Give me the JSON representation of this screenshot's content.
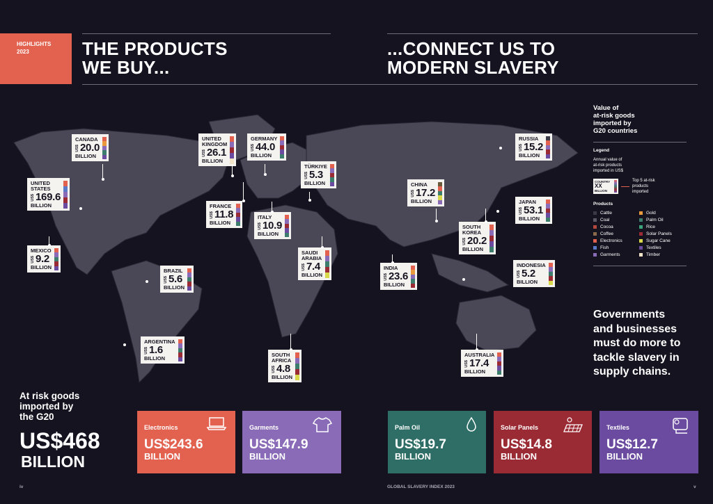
{
  "highlight": {
    "label": "HIGHLIGHTS",
    "year": "2023"
  },
  "titles": {
    "left": [
      "THE PRODUCTS",
      "WE BUY..."
    ],
    "right": [
      "...CONNECT US TO",
      "MODERN SLAVERY"
    ]
  },
  "currency_label": "US$",
  "unit_label": "BILLION",
  "countries": [
    {
      "id": "canada",
      "name": [
        "CANADA"
      ],
      "value": "20.0",
      "colors": [
        "#e2624f",
        "#e89a3c",
        "#8a6bb8",
        "#3d7d6e",
        "#6a4ba0"
      ]
    },
    {
      "id": "united-states",
      "name": [
        "UNITED",
        "STATES"
      ],
      "value": "169.6",
      "colors": [
        "#e2624f",
        "#5a7ac8",
        "#8a6bb8",
        "#9a2a34",
        "#6a4ba0"
      ]
    },
    {
      "id": "mexico",
      "name": [
        "MEXICO"
      ],
      "value": "9.2",
      "colors": [
        "#e2624f",
        "#8a6bb8",
        "#3d7d6e",
        "#9a2a34",
        "#6a4ba0"
      ]
    },
    {
      "id": "brazil",
      "name": [
        "BRAZIL"
      ],
      "value": "5.6",
      "colors": [
        "#e2624f",
        "#8a6bb8",
        "#3d7d6e",
        "#9a2a34",
        "#6a4ba0"
      ]
    },
    {
      "id": "argentina",
      "name": [
        "ARGENTINA"
      ],
      "value": "1.6",
      "colors": [
        "#e2624f",
        "#8a6bb8",
        "#3d7d6e",
        "#9a2a34",
        "#6a4ba0"
      ]
    },
    {
      "id": "united-kingdom",
      "name": [
        "UNITED",
        "KINGDOM"
      ],
      "value": "26.1",
      "colors": [
        "#e2624f",
        "#8a6bb8",
        "#9a2a34",
        "#6a4ba0",
        "#f0e3c8"
      ]
    },
    {
      "id": "germany",
      "name": [
        "GERMANY"
      ],
      "value": "44.0",
      "colors": [
        "#e2624f",
        "#8a6bb8",
        "#9a2a34",
        "#6a4ba0",
        "#3d7d6e"
      ]
    },
    {
      "id": "france",
      "name": [
        "FRANCE"
      ],
      "value": "11.8",
      "colors": [
        "#e2624f",
        "#8a6bb8",
        "#9a2a34",
        "#6a4ba0",
        "#3d7d6e"
      ]
    },
    {
      "id": "italy",
      "name": [
        "ITALY"
      ],
      "value": "10.9",
      "colors": [
        "#e2624f",
        "#8a6bb8",
        "#9a2a34",
        "#6a4ba0",
        "#3d7d6e"
      ]
    },
    {
      "id": "turkiye",
      "name": [
        "TÜRKIYE"
      ],
      "value": "5.3",
      "colors": [
        "#e2624f",
        "#8a6bb8",
        "#9a2a34",
        "#3d7d6e",
        "#6a4ba0"
      ]
    },
    {
      "id": "saudi-arabia",
      "name": [
        "SAUDI",
        "ARABIA"
      ],
      "value": "7.4",
      "colors": [
        "#e2624f",
        "#8a6bb8",
        "#3d7d6e",
        "#9a2a34",
        "#d7d84a"
      ]
    },
    {
      "id": "south-africa",
      "name": [
        "SOUTH",
        "AFRICA"
      ],
      "value": "4.8",
      "colors": [
        "#e2624f",
        "#8a6bb8",
        "#3d7d6e",
        "#9a2a34",
        "#d7d84a"
      ]
    },
    {
      "id": "russia",
      "name": [
        "RUSSIA"
      ],
      "value": "15.2",
      "colors": [
        "#3b3a46",
        "#e2624f",
        "#8a6bb8",
        "#9a2a34",
        "#6a4ba0"
      ]
    },
    {
      "id": "china",
      "name": [
        "CHINA"
      ],
      "value": "17.2",
      "colors": [
        "#6b5a3a",
        "#e2624f",
        "#3d7d6e",
        "#d7d84a",
        "#8a6bb8"
      ]
    },
    {
      "id": "japan",
      "name": [
        "JAPAN"
      ],
      "value": "53.1",
      "colors": [
        "#e2624f",
        "#8a6bb8",
        "#9a2a34",
        "#6a4ba0",
        "#3d7d6e"
      ]
    },
    {
      "id": "south-korea",
      "name": [
        "SOUTH",
        "KOREA"
      ],
      "value": "20.2",
      "colors": [
        "#e2624f",
        "#8a6bb8",
        "#9a2a34",
        "#6a4ba0",
        "#3d7d6e"
      ]
    },
    {
      "id": "india",
      "name": [
        "INDIA"
      ],
      "value": "23.6",
      "colors": [
        "#e2624f",
        "#e89a3c",
        "#8a6bb8",
        "#3d7d6e",
        "#9a2a34"
      ]
    },
    {
      "id": "indonesia",
      "name": [
        "INDONESIA"
      ],
      "value": "5.2",
      "colors": [
        "#e2624f",
        "#8a6bb8",
        "#3d7d6e",
        "#9a2a34",
        "#d7d84a"
      ]
    },
    {
      "id": "australia",
      "name": [
        "AUSTRALIA"
      ],
      "value": "17.4",
      "colors": [
        "#e2624f",
        "#8a6bb8",
        "#9a2a34",
        "#6a4ba0",
        "#3d7d6e"
      ]
    }
  ],
  "side": {
    "title": [
      "Value of",
      "at-risk goods",
      "imported by",
      "G20 countries"
    ],
    "legend_heading": "Legend",
    "legend_desc": [
      "Annual value of",
      "at-risk products",
      "imported in US$"
    ],
    "mini_card": {
      "country": "COUNTRY",
      "value": "XX",
      "cur": "US$",
      "unit": "BILLION"
    },
    "top5_desc": [
      "Top 5 at-risk",
      "products",
      "imported"
    ],
    "products_heading": "Products",
    "products": [
      {
        "name": "Cattle",
        "color": "#3b3a46"
      },
      {
        "name": "Gold",
        "color": "#e89a3c"
      },
      {
        "name": "Coal",
        "color": "#5c5a66"
      },
      {
        "name": "Palm Oil",
        "color": "#3d7d6e"
      },
      {
        "name": "Cocoa",
        "color": "#b2493c"
      },
      {
        "name": "Rice",
        "color": "#3aa37a"
      },
      {
        "name": "Coffee",
        "color": "#8a6a4a"
      },
      {
        "name": "Solar Panels",
        "color": "#9a2a34"
      },
      {
        "name": "Electronics",
        "color": "#e2624f"
      },
      {
        "name": "Sugar Cane",
        "color": "#d7d84a"
      },
      {
        "name": "Fish",
        "color": "#5a7ac8"
      },
      {
        "name": "Textiles",
        "color": "#6a4ba0"
      },
      {
        "name": "Garments",
        "color": "#8a6bb8"
      },
      {
        "name": "Timber",
        "color": "#f0e3c8"
      }
    ]
  },
  "cta": [
    "Governments",
    "and businesses",
    "must do more to",
    "tackle slavery in",
    "supply chains."
  ],
  "risk": {
    "label": [
      "At risk goods",
      "imported by",
      "the G20"
    ],
    "value": "US$468",
    "unit": "BILLION"
  },
  "tiles": [
    {
      "id": "electronics",
      "name": "Electronics",
      "value": "US$243.6",
      "unit": "BILLION",
      "color": "#e2624f",
      "icon": "laptop-icon"
    },
    {
      "id": "garments",
      "name": "Garments",
      "value": "US$147.9",
      "unit": "BILLION",
      "color": "#8a6bb8",
      "icon": "tshirt-icon"
    },
    {
      "id": "palm-oil",
      "name": "Palm Oil",
      "value": "US$19.7",
      "unit": "BILLION",
      "color": "#2f6e66",
      "icon": "drop-icon"
    },
    {
      "id": "solar-panels",
      "name": "Solar Panels",
      "value": "US$14.8",
      "unit": "BILLION",
      "color": "#9a2a34",
      "icon": "solar-panel-icon"
    },
    {
      "id": "textiles",
      "name": "Textiles",
      "value": "US$12.7",
      "unit": "BILLION",
      "color": "#6a4ba0",
      "icon": "fabric-roll-icon"
    }
  ],
  "footer": {
    "left_page": "iv",
    "center": "GLOBAL SLAVERY INDEX 2023",
    "right_page": "v"
  }
}
